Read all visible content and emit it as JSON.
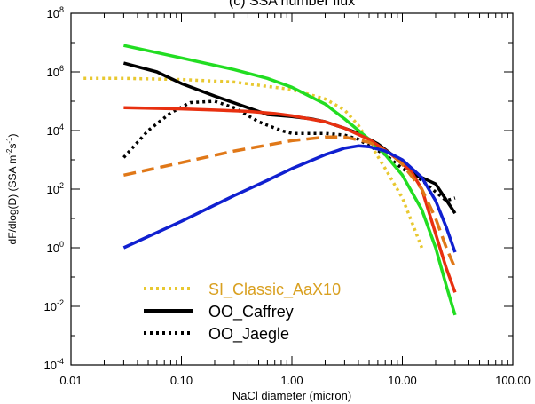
{
  "chart_data": {
    "type": "line",
    "title": "(c) SSA number flux",
    "xlabel": "NaCl diameter (micron)",
    "ylabel": "dF/dlog(D) (SSA m^-2 s^-1)",
    "x_scale": "log",
    "y_scale": "log",
    "xlim": [
      0.01,
      100
    ],
    "ylim": [
      0.0001,
      100000000
    ],
    "x_ticks": [
      "0.01",
      "0.10",
      "1.00",
      "10.00",
      "100.00"
    ],
    "y_tick_exponents": [
      "-4",
      "-2",
      "0",
      "2",
      "4",
      "6",
      "8"
    ],
    "legend_position": "bottom-left",
    "series": [
      {
        "name": "SI_Classic_AaX10",
        "color": "#e8c830",
        "style": "dotted",
        "legend": true,
        "x": [
          0.013,
          0.03,
          0.1,
          0.3,
          1.0,
          2.0,
          3.0,
          4.0,
          5.0,
          7.0,
          10.0,
          13.0,
          15.0
        ],
        "y": [
          600000,
          600000,
          550000,
          450000,
          250000,
          120000,
          50000,
          15000,
          4000,
          500,
          50,
          4,
          1
        ]
      },
      {
        "name": "OO_Caffrey",
        "color": "#000000",
        "style": "solid",
        "legend": true,
        "x": [
          0.03,
          0.06,
          0.1,
          0.2,
          0.4,
          0.6,
          1.0,
          1.5,
          2.0,
          3.0,
          4.0,
          6.0,
          10.0,
          13.0,
          15.0,
          20.0,
          30.0
        ],
        "y": [
          2000000,
          1000000,
          400000,
          150000,
          60000,
          35000,
          30000,
          25000,
          20000,
          12000,
          8000,
          3500,
          800,
          300,
          250,
          150,
          15
        ]
      },
      {
        "name": "OO_Jaegle",
        "color": "#000000",
        "style": "dotted",
        "legend": true,
        "x": [
          0.03,
          0.05,
          0.08,
          0.12,
          0.2,
          0.3,
          0.5,
          0.8,
          1.0,
          1.5,
          2.0,
          3.0,
          4.0,
          5.0,
          7.0,
          10.0,
          15.0,
          20.0,
          25.0,
          30.0
        ],
        "y": [
          1200,
          10000,
          40000,
          90000,
          100000,
          60000,
          20000,
          10000,
          8000,
          8000,
          8000,
          7000,
          5000,
          3000,
          1500,
          500,
          200,
          80,
          40,
          50
        ]
      },
      {
        "name": "",
        "color": "#22dd22",
        "style": "solid",
        "legend": false,
        "x": [
          0.03,
          0.1,
          0.3,
          0.6,
          1.0,
          2.0,
          3.0,
          5.0,
          7.0,
          10.0,
          15.0,
          20.0,
          25.0,
          30.0
        ],
        "y": [
          8000000,
          3000000,
          1200000,
          600000,
          300000,
          80000,
          25000,
          5000,
          1500,
          300,
          20,
          1,
          0.05,
          0.005
        ]
      },
      {
        "name": "",
        "color": "#e83010",
        "style": "solid",
        "legend": false,
        "x": [
          0.03,
          0.1,
          0.2,
          0.4,
          0.7,
          1.0,
          2.0,
          3.0,
          5.0,
          8.0,
          12.0,
          15.0,
          20.0,
          25.0,
          30.0
        ],
        "y": [
          60000,
          55000,
          50000,
          45000,
          38000,
          32000,
          20000,
          12000,
          5000,
          1500,
          400,
          100,
          3,
          0.2,
          0.03
        ]
      },
      {
        "name": "",
        "color": "#e07818",
        "style": "dashed",
        "legend": false,
        "x": [
          0.03,
          0.1,
          0.3,
          1.0,
          2.0,
          3.0,
          5.0,
          8.0,
          10.0,
          15.0,
          20.0,
          25.0,
          30.0
        ],
        "y": [
          300,
          800,
          2000,
          4500,
          6000,
          6000,
          4000,
          1500,
          700,
          100,
          10,
          1,
          0.2
        ]
      },
      {
        "name": "",
        "color": "#1020d0",
        "style": "solid",
        "legend": false,
        "x": [
          0.03,
          0.1,
          0.3,
          0.6,
          1.0,
          2.0,
          3.0,
          4.0,
          5.0,
          7.0,
          10.0,
          15.0,
          20.0,
          25.0,
          30.0
        ],
        "y": [
          1,
          8,
          60,
          200,
          500,
          1500,
          2500,
          3000,
          2800,
          2000,
          1000,
          250,
          40,
          5,
          0.7
        ]
      }
    ]
  }
}
